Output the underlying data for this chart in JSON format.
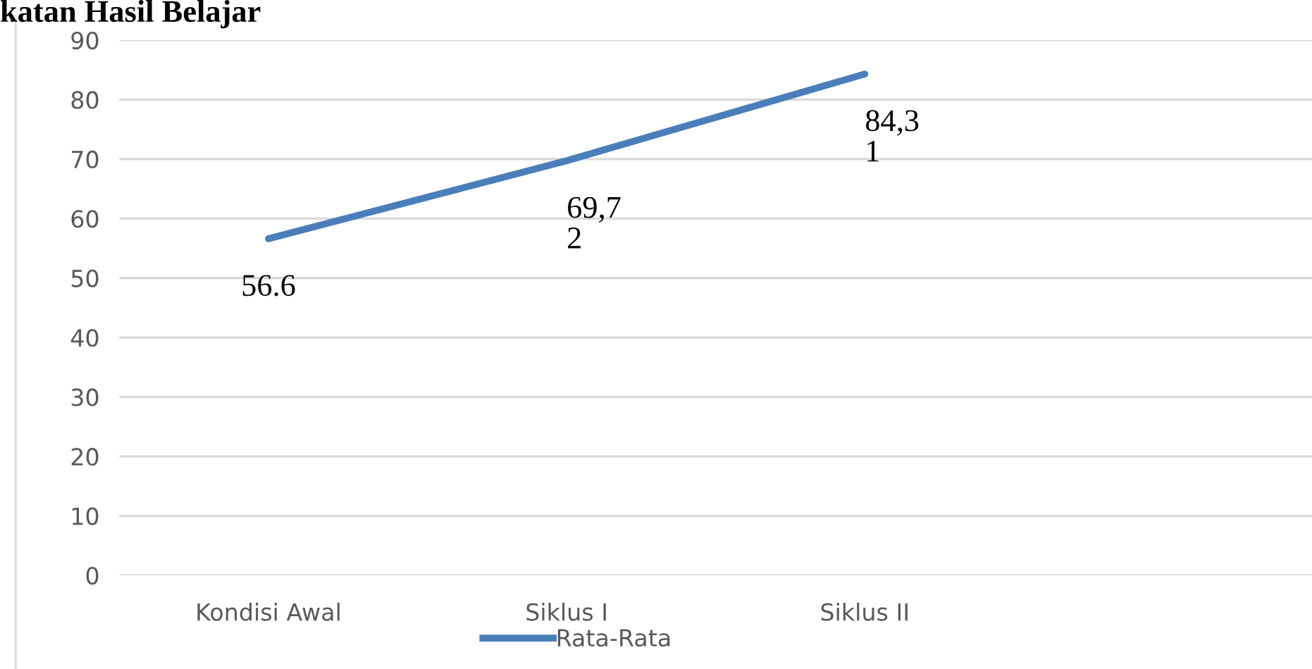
{
  "chart_data": {
    "type": "line",
    "title": "katan Hasil Belajar",
    "categories": [
      "Kondisi Awal",
      "Siklus I",
      "Siklus II",
      null
    ],
    "series": [
      {
        "name": "Rata-Rata",
        "color": "#4a7ebb",
        "values": [
          56.6,
          69.72,
          84.31,
          null
        ],
        "value_labels": [
          "56.6",
          "69,7\n2",
          "84,3\n1",
          null
        ]
      }
    ],
    "ylim": [
      0,
      90
    ],
    "yticks": [
      0,
      10,
      20,
      30,
      40,
      50,
      60,
      70,
      80,
      90
    ],
    "grid": "y",
    "legend": "bottom",
    "marker": "none",
    "line_style": "solid"
  }
}
